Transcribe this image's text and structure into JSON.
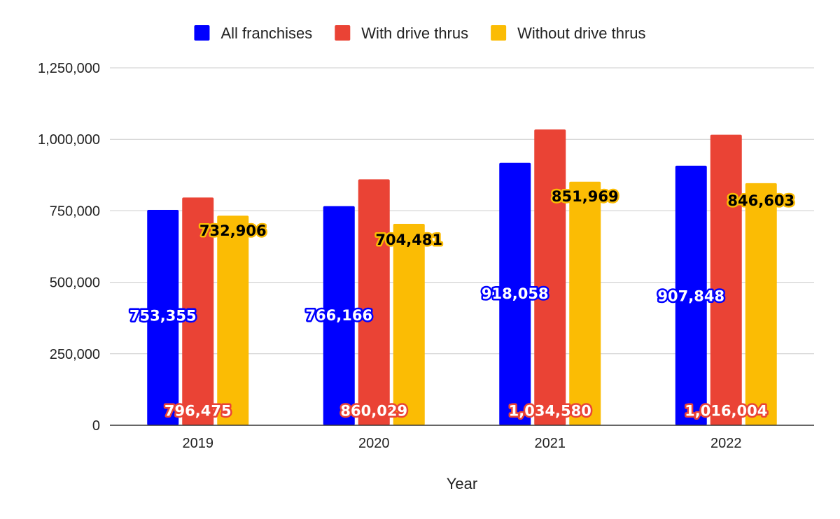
{
  "chart_data": {
    "type": "bar",
    "title": "",
    "xlabel": "Year",
    "ylabel": "",
    "categories": [
      "2019",
      "2020",
      "2021",
      "2022"
    ],
    "ylim": [
      0,
      1250000
    ],
    "yticks": [
      0,
      250000,
      500000,
      750000,
      1000000,
      1250000
    ],
    "ytick_labels": [
      "0",
      "250,000",
      "500,000",
      "750,000",
      "1,000,000",
      "1,250,000"
    ],
    "grid": true,
    "legend_position": "top",
    "series": [
      {
        "name": "All franchises",
        "color": "#0000ff",
        "values": [
          753355,
          766166,
          918058,
          907848
        ],
        "labels": [
          "753,355",
          "766,166",
          "918,058",
          "907,848"
        ],
        "label_text_color": "#ffffff",
        "label_outline_color": "#0000ff",
        "label_y": [
          385000,
          387000,
          462000,
          454000
        ]
      },
      {
        "name": "With drive thrus",
        "color": "#ea4335",
        "values": [
          796475,
          860029,
          1034580,
          1016004
        ],
        "labels": [
          "796,475",
          "860,029",
          "1,034,580",
          "1,016,004"
        ],
        "label_text_color": "#ffffff",
        "label_outline_color": "#ea4335",
        "label_y": [
          53000,
          53000,
          53000,
          53000
        ]
      },
      {
        "name": "Without drive thrus",
        "color": "#fbbc04",
        "values": [
          732906,
          704481,
          851969,
          846603
        ],
        "labels": [
          "732,906",
          "704,481",
          "851,969",
          "846,603"
        ],
        "label_text_color": "#000000",
        "label_outline_color": "#fbbc04",
        "label_y": [
          683000,
          651000,
          802000,
          788000
        ]
      }
    ]
  }
}
